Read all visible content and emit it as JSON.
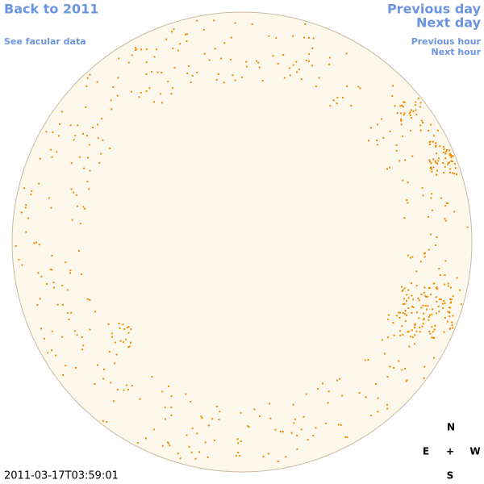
{
  "nav": {
    "back_year": "Back to 2011",
    "facular_link": "See facular data",
    "previous_day": "Previous day",
    "next_day": "Next day",
    "previous_hour": "Previous hour",
    "next_hour": "Next hour"
  },
  "timestamp": "2011-03-17T03:59:01",
  "compass": {
    "north": "N",
    "east": "E",
    "center": "+",
    "west": "W",
    "south": "S"
  }
}
